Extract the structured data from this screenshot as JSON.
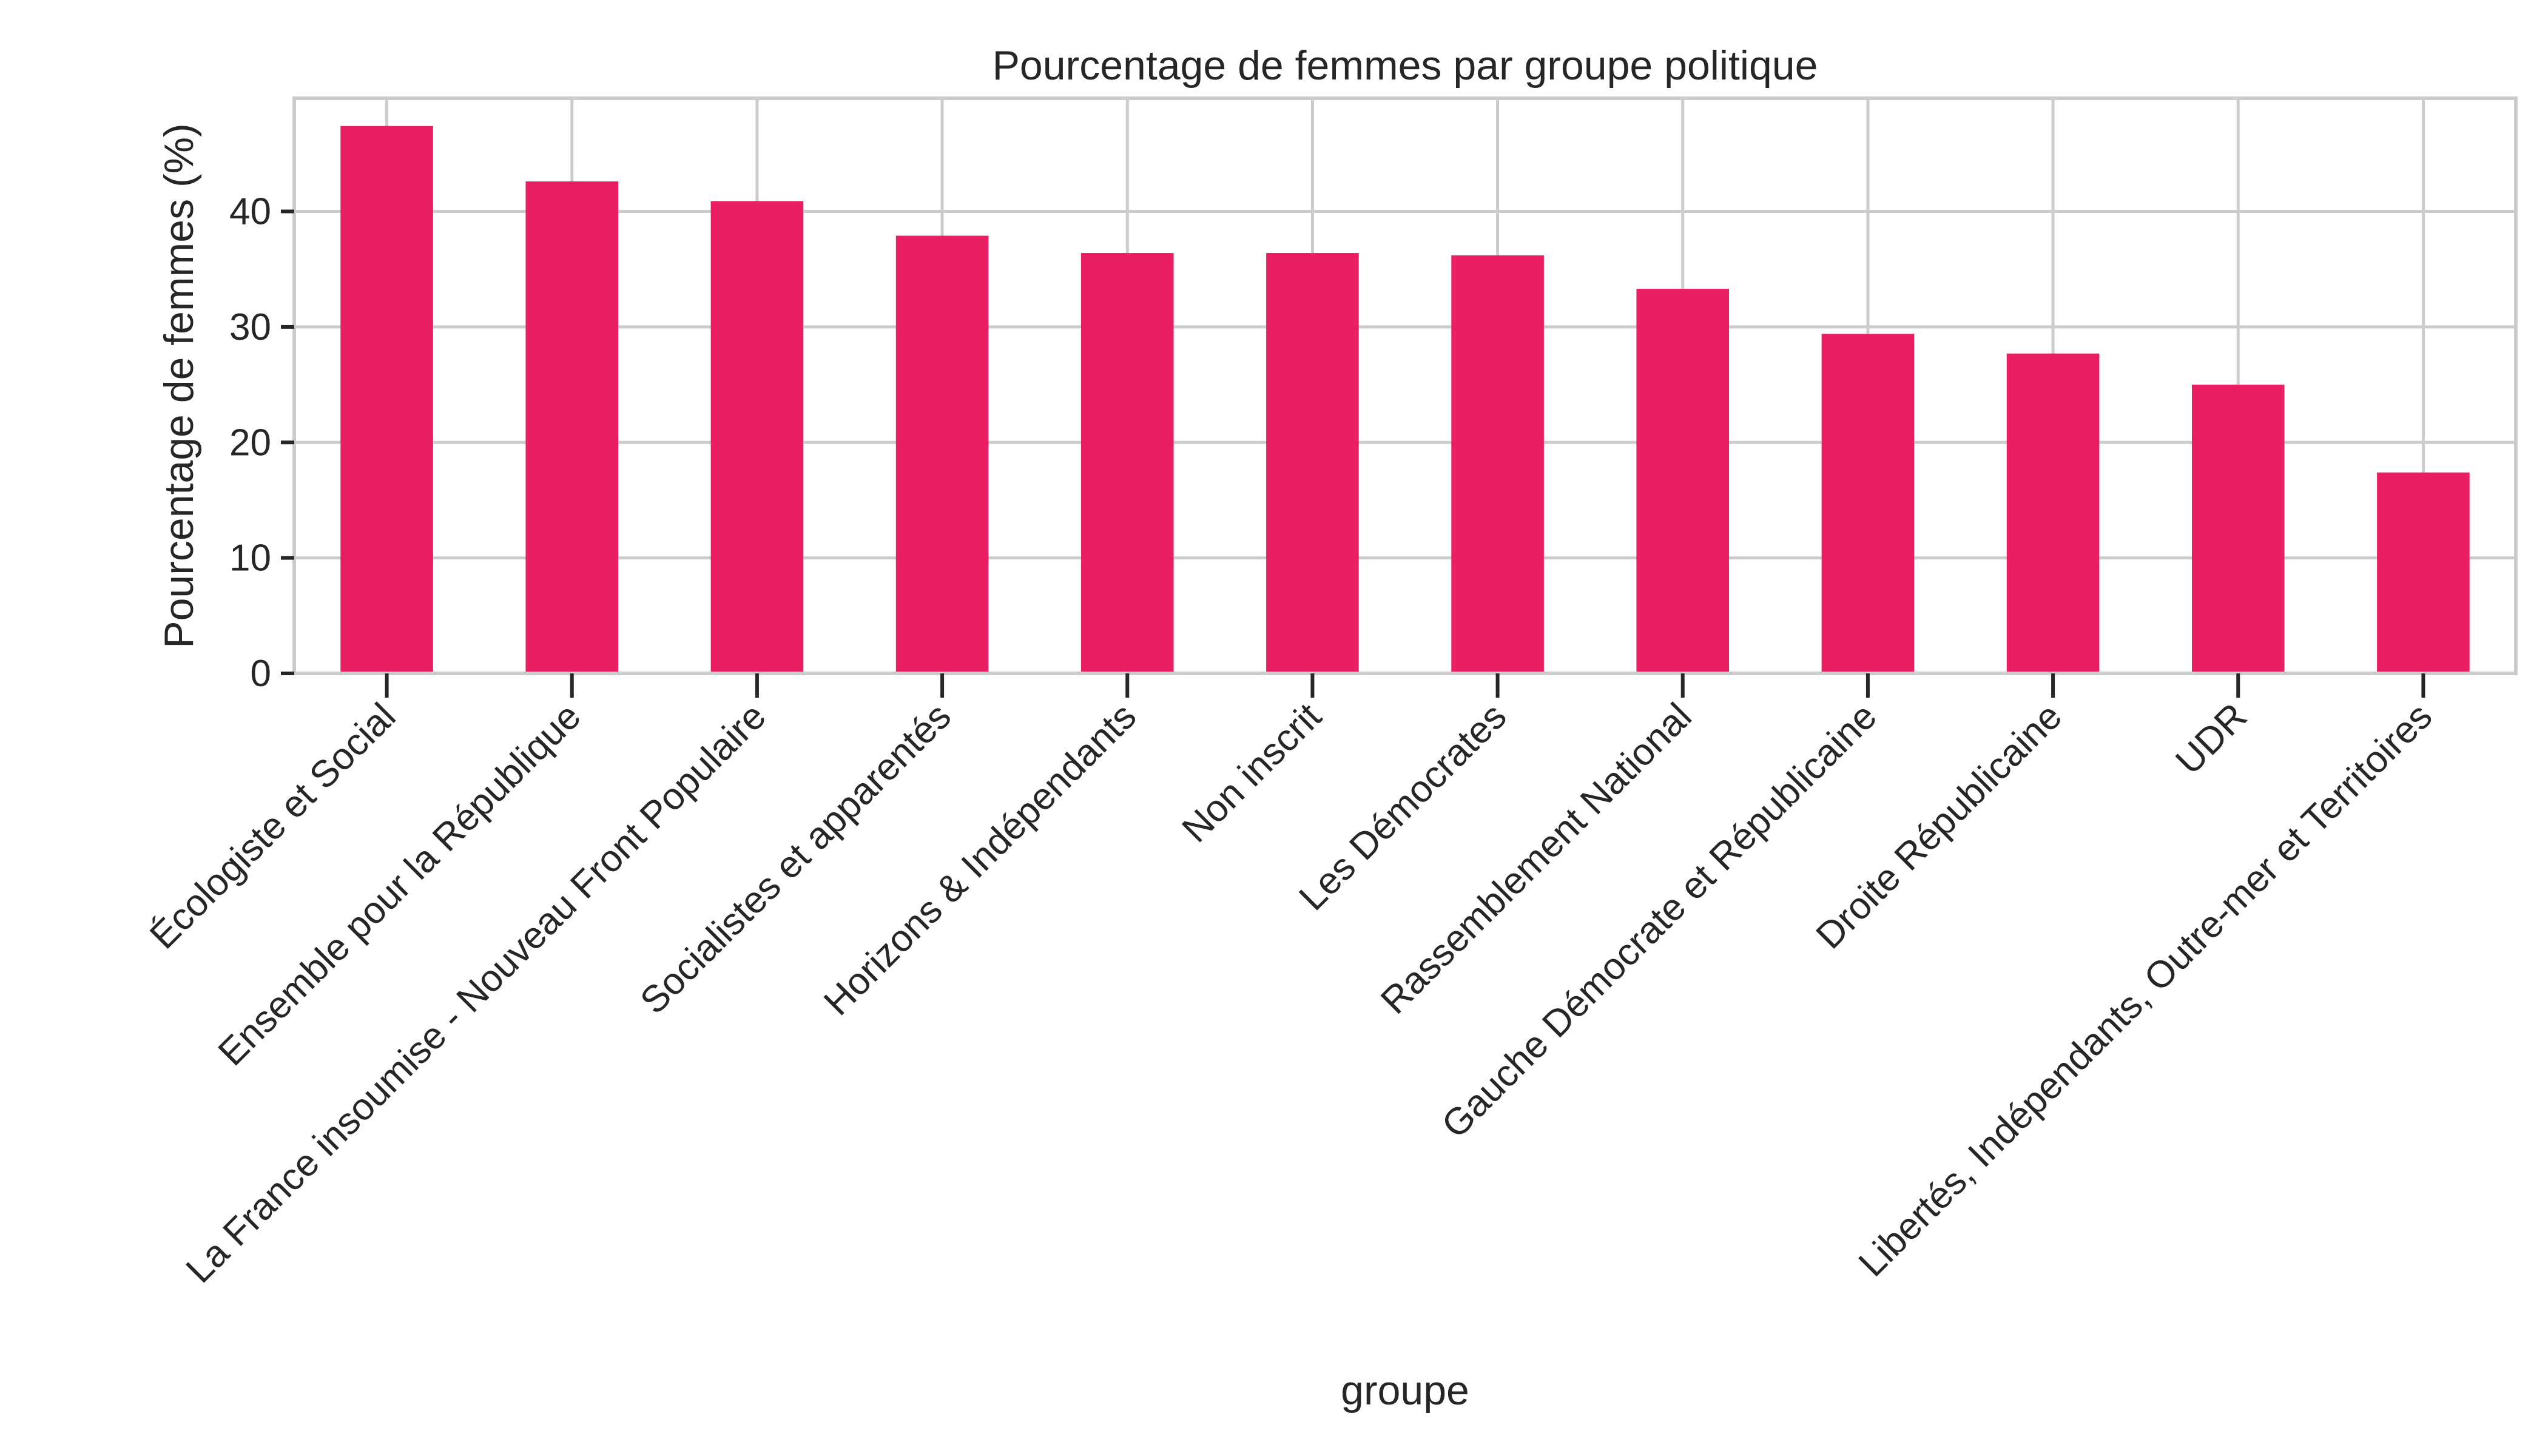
{
  "chart_data": {
    "type": "bar",
    "title": "Pourcentage de femmes par groupe politique",
    "xlabel": "groupe",
    "ylabel": "Pourcentage de femmes (%)",
    "categories": [
      "Écologiste et Social",
      "Ensemble pour la République",
      "La France insoumise - Nouveau Front Populaire",
      "Socialistes et apparentés",
      "Horizons & Indépendants",
      "Non inscrit",
      "Les Démocrates",
      "Rassemblement National",
      "Gauche Démocrate et Républicaine",
      "Droite Républicaine",
      "UDR",
      "Libertés, Indépendants, Outre-mer et Territoires"
    ],
    "values": [
      47.4,
      42.6,
      40.9,
      37.9,
      36.4,
      36.4,
      36.2,
      33.3,
      29.4,
      27.7,
      25.0,
      17.4
    ],
    "yticks": [
      0,
      10,
      20,
      30,
      40
    ],
    "ylim": [
      0,
      49.8
    ],
    "grid": true,
    "bar_color": "#e91e63"
  }
}
